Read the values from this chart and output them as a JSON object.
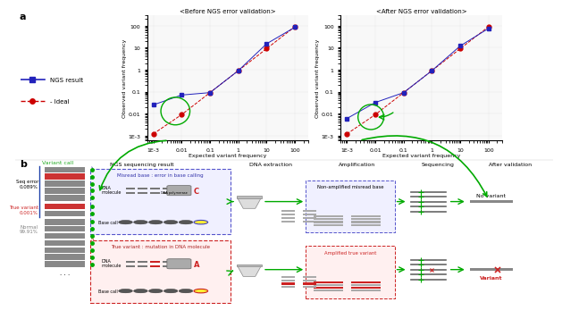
{
  "panel_a_label": "a",
  "panel_b_label": "b",
  "plot1_title": "<Before NGS error validation>",
  "plot2_title": "<After NGS error validation>",
  "xlabel": "Expected variant frequency",
  "ylabel": "Observed variant frequency",
  "ngs_x": [
    0.001,
    0.01,
    0.1,
    1,
    10,
    100
  ],
  "ngs_y_before": [
    0.025,
    0.07,
    0.09,
    0.9,
    15,
    85
  ],
  "ideal_x": [
    0.001,
    0.01,
    0.1,
    1,
    10,
    100
  ],
  "ideal_y_before": [
    0.0012,
    0.009,
    0.09,
    0.9,
    9,
    90
  ],
  "ngs_y_after": [
    0.006,
    0.032,
    0.09,
    0.9,
    12,
    75
  ],
  "ideal_y_after": [
    0.0012,
    0.009,
    0.09,
    0.9,
    9,
    90
  ],
  "ngs_color": "#2222bb",
  "ideal_color": "#cc0000",
  "ellipse_color": "#00aa00",
  "arrow_color": "#00aa00",
  "legend_ngs": "NGS result",
  "legend_ideal": "Ideal",
  "xtick_labels": [
    "1E-3",
    "0.01",
    "0.1",
    "1",
    "10",
    "100"
  ],
  "xtick_vals": [
    0.001,
    0.01,
    0.1,
    1,
    10,
    100
  ],
  "ytick_labels": [
    "1E-3",
    "0.01",
    "0.1",
    "1",
    "10",
    "100"
  ],
  "ytick_vals": [
    0.001,
    0.01,
    0.1,
    1,
    10,
    100
  ],
  "bg_color": "#f8f8f8",
  "b_title_col1": "NGS sequencing result",
  "b_title_col2": "DNA extraction",
  "b_title_col3": "Amplification",
  "b_title_col4": "Sequencing",
  "b_title_col5": "After validation",
  "seq_error_label": "Seq error\n0.089%",
  "true_variant_label": "True variant\n0.001%",
  "normal_label": "Normal\n99.91%",
  "misread_title": "Misread base : error in base calling",
  "true_variant_title": "True variant : mutation in DNA molecule",
  "no_variant_label": "No variant",
  "variant_label": "Variant",
  "variant_call_label": "Variant call",
  "non_amplified_label": "Non-amplified misread base",
  "amplified_label": "Amplified true variant",
  "gray_bar": "#888888",
  "red_bar": "#cc3333",
  "green_dot": "#00aa00",
  "blue_box_edge": "#5555cc",
  "red_box_edge": "#cc2222"
}
